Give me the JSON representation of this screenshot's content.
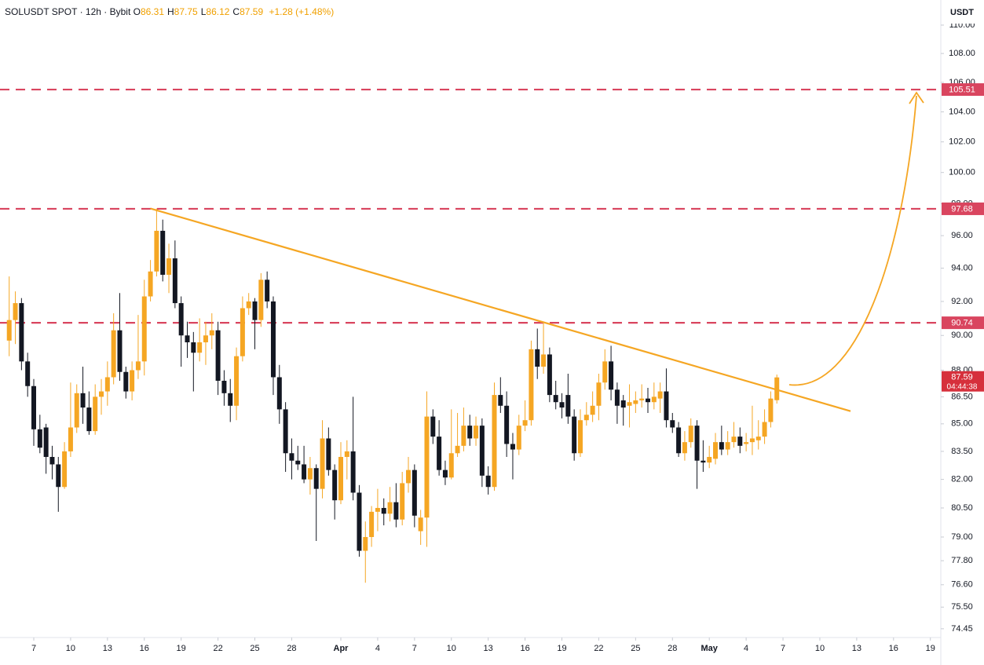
{
  "chart_data": {
    "type": "candlestick",
    "title": "SOLUSDT SPOT · 12h · Bybit",
    "ohlc": [
      {
        "label": "O",
        "value": 86.31
      },
      {
        "label": "H",
        "value": 87.75
      },
      {
        "label": "L",
        "value": 86.12
      },
      {
        "label": "C",
        "value": 87.59
      }
    ],
    "change": "+1.28 (+1.48%)",
    "y_label": "USDT",
    "countdown": "04:44:38",
    "up_color": "#f5a623",
    "down_color": "#131722",
    "log_scale": true,
    "ylim": [
      74.03,
      111.8
    ],
    "yticks": [
      {
        "value": 110,
        "label": "110.00"
      },
      {
        "value": 108,
        "label": "108.00"
      },
      {
        "value": 106,
        "label": "106.00"
      },
      {
        "value": 104,
        "label": "104.00"
      },
      {
        "value": 102,
        "label": "102.00"
      },
      {
        "value": 100,
        "label": "100.00"
      },
      {
        "value": 98,
        "label": "98.00"
      },
      {
        "value": 96,
        "label": "96.00"
      },
      {
        "value": 94,
        "label": "94.00"
      },
      {
        "value": 92,
        "label": "92.00"
      },
      {
        "value": 90,
        "label": "90.00"
      },
      {
        "value": 88,
        "label": "88.00"
      },
      {
        "value": 86.5,
        "label": "86.50"
      },
      {
        "value": 85,
        "label": "85.00"
      },
      {
        "value": 83.5,
        "label": "83.50"
      },
      {
        "value": 82,
        "label": "82.00"
      },
      {
        "value": 80.5,
        "label": "80.50"
      },
      {
        "value": 79,
        "label": "79.00"
      },
      {
        "value": 77.8,
        "label": "77.80"
      },
      {
        "value": 76.6,
        "label": "76.60"
      },
      {
        "value": 75.5,
        "label": "75.50"
      },
      74.45
    ],
    "xticks": [
      {
        "value": "03-07",
        "label": "7"
      },
      {
        "value": "03-10",
        "label": "10"
      },
      {
        "value": "03-13",
        "label": "13"
      },
      {
        "value": "03-16",
        "label": "16"
      },
      {
        "value": "03-19",
        "label": "19"
      },
      {
        "value": "03-22",
        "label": "22"
      },
      {
        "value": "03-25",
        "label": "25"
      },
      {
        "value": "03-28",
        "label": "28"
      },
      {
        "value": "04-01",
        "label": "Apr"
      },
      {
        "value": "04-04",
        "label": "4"
      },
      {
        "value": "04-07",
        "label": "7"
      },
      {
        "value": "04-10",
        "label": "10"
      },
      {
        "value": "04-13",
        "label": "13"
      },
      {
        "value": "04-16",
        "label": "16"
      },
      {
        "value": "04-19",
        "label": "19"
      },
      {
        "value": "04-22",
        "label": "22"
      },
      {
        "value": "04-25",
        "label": "25"
      },
      {
        "value": "04-28",
        "label": "28"
      },
      {
        "value": "05-01",
        "label": "May"
      },
      {
        "value": "05-04",
        "label": "4"
      },
      {
        "value": "05-07",
        "label": "7"
      },
      {
        "value": "05-10",
        "label": "10"
      },
      {
        "value": "05-13",
        "label": "13"
      },
      {
        "value": "05-16",
        "label": "16"
      },
      {
        "value": "05-19",
        "label": "19"
      }
    ],
    "levels": {
      "color": "#d9455f",
      "values": [
        105.51,
        97.68,
        90.74
      ]
    },
    "trendline": {
      "color": "#f5a623",
      "x": [
        "03-16 12",
        "05-12 12"
      ],
      "values": [
        97.7,
        85.7
      ]
    },
    "x": [
      "03-05 00",
      "03-05 12",
      "03-06 00",
      "03-06 12",
      "03-07 00",
      "03-07 12",
      "03-08 00",
      "03-08 12",
      "03-09 00",
      "03-09 12",
      "03-10 00",
      "03-10 12",
      "03-11 00",
      "03-11 12",
      "03-12 00",
      "03-12 12",
      "03-13 00",
      "03-13 12",
      "03-14 00",
      "03-14 12",
      "03-15 00",
      "03-15 12",
      "03-16 00",
      "03-16 12",
      "03-17 00",
      "03-17 12",
      "03-18 00",
      "03-18 12",
      "03-19 00",
      "03-19 12",
      "03-20 00",
      "03-20 12",
      "03-21 00",
      "03-21 12",
      "03-22 00",
      "03-22 12",
      "03-23 00",
      "03-23 12",
      "03-24 00",
      "03-24 12",
      "03-25 00",
      "03-25 12",
      "03-26 00",
      "03-26 12",
      "03-27 00",
      "03-27 12",
      "03-28 00",
      "03-28 12",
      "03-29 00",
      "03-29 12",
      "03-30 00",
      "03-30 12",
      "03-31 00",
      "03-31 12",
      "04-01 00",
      "04-01 12",
      "04-02 00",
      "04-02 12",
      "04-03 00",
      "04-03 12",
      "04-04 00",
      "04-04 12",
      "04-05 00",
      "04-05 12",
      "04-06 00",
      "04-06 12",
      "04-07 00",
      "04-07 12",
      "04-08 00",
      "04-08 12",
      "04-09 00",
      "04-09 12",
      "04-10 00",
      "04-10 12",
      "04-11 00",
      "04-11 12",
      "04-12 00",
      "04-12 12",
      "04-13 00",
      "04-13 12",
      "04-14 00",
      "04-14 12",
      "04-15 00",
      "04-15 12",
      "04-16 00",
      "04-16 12",
      "04-17 00",
      "04-17 12",
      "04-18 00",
      "04-18 12",
      "04-19 00",
      "04-19 12",
      "04-20 00",
      "04-20 12",
      "04-21 00",
      "04-21 12",
      "04-22 00",
      "04-22 12",
      "04-23 00",
      "04-23 12",
      "04-24 00",
      "04-24 12",
      "04-25 00",
      "04-25 12",
      "04-26 00",
      "04-26 12",
      "04-27 00",
      "04-27 12",
      "04-28 00",
      "04-28 12",
      "04-29 00",
      "04-29 12",
      "04-30 00",
      "04-30 12",
      "05-01 00",
      "05-01 12",
      "05-02 00",
      "05-02 12",
      "05-03 00",
      "05-03 12",
      "05-04 00",
      "05-04 12",
      "05-05 00",
      "05-05 12",
      "05-06 00",
      "05-06 12"
    ],
    "open": [
      89.7,
      90.9,
      91.9,
      88.5,
      87.1,
      84.7,
      84.8,
      83.2,
      82.8,
      81.6,
      83.5,
      84.8,
      86.7,
      85.9,
      84.6,
      86.5,
      86.8,
      87.6,
      90.3,
      87.9,
      86.8,
      88.0,
      88.5,
      92.3,
      93.8,
      96.3,
      93.6,
      94.6,
      91.9,
      90.0,
      89.6,
      89.0,
      89.6,
      90.0,
      90.3,
      87.4,
      86.7,
      86.0,
      88.8,
      91.6,
      92.0,
      90.9,
      93.3,
      92.0,
      87.6,
      85.8,
      83.4,
      83.0,
      82.8,
      82.0,
      82.6,
      81.5,
      84.2,
      82.5,
      80.9,
      83.2,
      83.5,
      81.3,
      78.3,
      79.0,
      80.3,
      80.5,
      80.2,
      80.8,
      79.9,
      81.8,
      82.5,
      79.3,
      80.0,
      85.4,
      84.3,
      82.5,
      82.1,
      83.4,
      83.8,
      84.9,
      84.2,
      84.9,
      82.2,
      81.6,
      86.6,
      86.0,
      83.9,
      83.6,
      84.9,
      85.2,
      89.2,
      88.2,
      88.9,
      86.6,
      86.2,
      86.6,
      85.4,
      83.4,
      85.2,
      85.5,
      86.0,
      87.3,
      88.5,
      86.9,
      86.3,
      86.0,
      86.1,
      86.3,
      86.4,
      86.2,
      86.4,
      86.8,
      85.2,
      84.8,
      83.4,
      84.0,
      84.9,
      83.0,
      82.9,
      83.1,
      84.0,
      83.6,
      84.0,
      84.3,
      83.9,
      84.0,
      84.1,
      84.3,
      85.1,
      86.31
    ],
    "high": [
      93.5,
      92.6,
      92.2,
      89.0,
      87.5,
      85.5,
      85.0,
      83.8,
      83.2,
      84.0,
      87.3,
      87.2,
      88.2,
      86.8,
      87.2,
      87.5,
      88.5,
      91.3,
      92.5,
      88.2,
      88.5,
      91.2,
      93.3,
      94.5,
      97.7,
      97.0,
      95.5,
      95.7,
      92.3,
      90.8,
      90.2,
      91.0,
      90.8,
      91.3,
      90.8,
      88.0,
      87.5,
      89.3,
      92.3,
      92.5,
      92.2,
      93.7,
      93.8,
      92.3,
      88.3,
      86.2,
      84.2,
      83.8,
      83.8,
      83.2,
      82.8,
      85.2,
      84.8,
      82.8,
      84.0,
      84.1,
      86.5,
      81.7,
      79.8,
      80.6,
      81.5,
      81.0,
      81.6,
      81.8,
      82.4,
      83.2,
      82.8,
      80.4,
      86.8,
      85.8,
      85.2,
      83.0,
      85.8,
      85.6,
      85.9,
      85.5,
      85.4,
      85.3,
      82.7,
      87.3,
      87.6,
      86.8,
      84.5,
      85.5,
      86.3,
      89.7,
      90.4,
      90.7,
      89.3,
      87.4,
      86.7,
      87.8,
      85.8,
      85.8,
      86.2,
      86.8,
      87.8,
      89.2,
      89.4,
      87.3,
      86.6,
      87.2,
      86.8,
      87.2,
      87.0,
      87.3,
      87.3,
      88.1,
      85.6,
      85.1,
      84.6,
      85.3,
      85.2,
      84.1,
      83.8,
      84.5,
      84.9,
      84.6,
      85.1,
      84.8,
      84.5,
      86.0,
      85.2,
      85.8,
      86.8,
      87.75
    ],
    "low": [
      88.8,
      89.5,
      88.0,
      86.5,
      83.8,
      83.4,
      82.3,
      82.0,
      80.3,
      81.5,
      83.2,
      84.5,
      85.0,
      84.4,
      84.4,
      85.5,
      86.0,
      87.2,
      87.4,
      86.4,
      86.3,
      87.5,
      87.7,
      92.0,
      93.5,
      93.2,
      92.5,
      91.6,
      88.2,
      88.7,
      86.8,
      88.5,
      88.3,
      89.2,
      86.6,
      86.0,
      85.1,
      85.2,
      88.5,
      91.2,
      89.2,
      90.5,
      91.6,
      86.6,
      85.0,
      82.4,
      82.0,
      82.5,
      81.8,
      81.2,
      78.8,
      81.0,
      82.2,
      79.9,
      80.7,
      82.0,
      80.9,
      78.0,
      76.7,
      78.5,
      79.3,
      79.6,
      79.8,
      79.5,
      79.6,
      81.3,
      79.5,
      78.6,
      78.5,
      83.9,
      82.2,
      81.7,
      82.0,
      83.2,
      83.5,
      83.8,
      83.8,
      81.6,
      81.2,
      81.4,
      85.6,
      83.2,
      82.0,
      83.3,
      84.6,
      84.9,
      87.5,
      87.8,
      86.2,
      85.8,
      85.3,
      85.0,
      83.0,
      83.2,
      84.9,
      85.1,
      85.2,
      86.9,
      86.3,
      85.0,
      84.9,
      84.8,
      85.6,
      85.9,
      85.6,
      85.8,
      85.6,
      84.8,
      84.5,
      83.2,
      83.0,
      83.7,
      81.5,
      82.4,
      82.6,
      82.8,
      83.3,
      83.3,
      83.7,
      83.4,
      83.5,
      83.3,
      83.6,
      83.9,
      84.8,
      86.12
    ],
    "close": [
      90.9,
      91.9,
      88.5,
      87.1,
      84.7,
      83.7,
      83.2,
      82.8,
      81.6,
      83.5,
      84.8,
      86.7,
      85.9,
      84.6,
      86.5,
      86.8,
      87.6,
      90.3,
      87.9,
      86.8,
      88.0,
      88.5,
      92.3,
      93.8,
      96.3,
      93.6,
      94.6,
      91.9,
      90.0,
      89.6,
      89.0,
      89.6,
      90.0,
      90.3,
      87.4,
      86.7,
      86.0,
      88.8,
      91.6,
      92.0,
      90.9,
      93.3,
      92.0,
      87.6,
      85.8,
      83.4,
      83.0,
      82.8,
      82.0,
      82.6,
      81.5,
      84.2,
      82.5,
      80.9,
      83.2,
      83.5,
      81.3,
      78.3,
      79.0,
      80.3,
      80.5,
      80.2,
      80.8,
      79.9,
      81.8,
      82.5,
      80.1,
      80.0,
      85.4,
      84.3,
      82.5,
      82.1,
      83.4,
      83.8,
      84.9,
      84.2,
      84.9,
      82.2,
      81.6,
      86.6,
      86.0,
      83.9,
      83.6,
      84.9,
      85.2,
      89.2,
      88.2,
      88.9,
      86.6,
      86.2,
      85.9,
      85.4,
      83.4,
      85.2,
      85.5,
      86.0,
      87.3,
      88.5,
      86.9,
      86.0,
      85.9,
      86.2,
      86.3,
      86.4,
      86.2,
      86.5,
      86.8,
      85.2,
      84.8,
      83.4,
      84.0,
      84.9,
      83.0,
      82.9,
      83.2,
      84.0,
      83.6,
      84.0,
      84.3,
      83.8,
      84.0,
      84.2,
      84.3,
      85.1,
      86.4,
      87.59
    ]
  }
}
